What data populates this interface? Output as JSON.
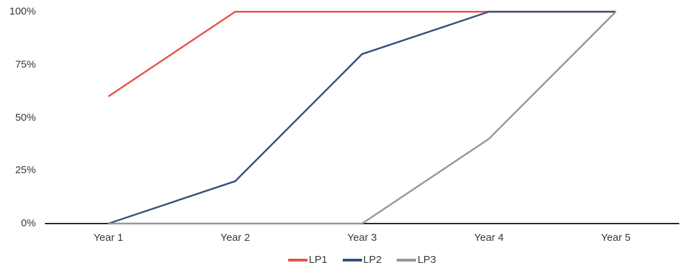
{
  "chart_data": {
    "type": "line",
    "categories": [
      "Year 1",
      "Year 2",
      "Year 3",
      "Year 4",
      "Year 5"
    ],
    "series": [
      {
        "name": "LP1",
        "color": "#e2544b",
        "values": [
          60,
          100,
          100,
          100,
          100
        ]
      },
      {
        "name": "LP2",
        "color": "#35507f",
        "values": [
          0,
          20,
          80,
          100,
          100
        ]
      },
      {
        "name": "LP3",
        "color": "#969696",
        "values": [
          0,
          0,
          0,
          40,
          100
        ]
      }
    ],
    "y_ticks": [
      {
        "label": "0%",
        "value": 0
      },
      {
        "label": "25%",
        "value": 25
      },
      {
        "label": "50%",
        "value": 50
      },
      {
        "label": "75%",
        "value": 75
      },
      {
        "label": "100%",
        "value": 100
      }
    ],
    "ylim": [
      0,
      100
    ],
    "grid": false,
    "legend_position": "bottom",
    "axis_color": "#262626",
    "label_color": "#383838",
    "background": "#ffffff"
  }
}
